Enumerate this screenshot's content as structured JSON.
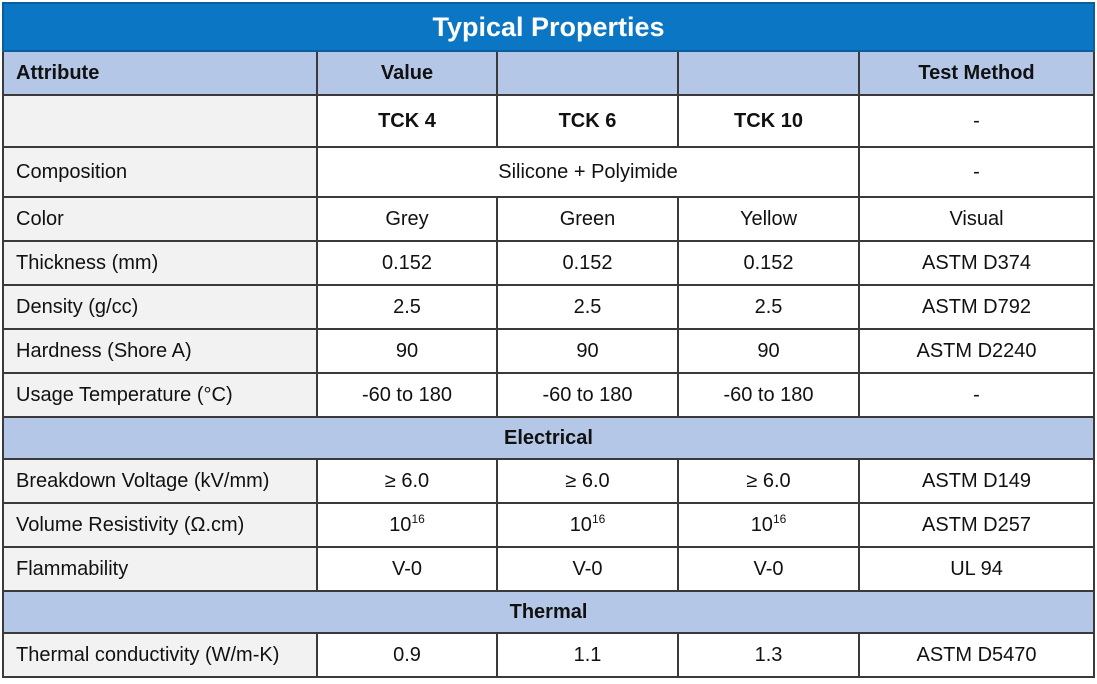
{
  "title": "Typical Properties",
  "header": {
    "attribute": "Attribute",
    "value": "Value",
    "test_method": "Test Method"
  },
  "grades": [
    "TCK 4",
    "TCK 6",
    "TCK 10"
  ],
  "grade_test": "-",
  "composition": {
    "label": "Composition",
    "value": "Silicone + Polyimide",
    "method": "-"
  },
  "general_rows": [
    {
      "label": "Color",
      "v1": "Grey",
      "v2": "Green",
      "v3": "Yellow",
      "method": "Visual"
    },
    {
      "label": "Thickness (mm)",
      "v1": "0.152",
      "v2": "0.152",
      "v3": "0.152",
      "method": "ASTM D374"
    },
    {
      "label": "Density (g/cc)",
      "v1": "2.5",
      "v2": "2.5",
      "v3": "2.5",
      "method": "ASTM D792"
    },
    {
      "label": "Hardness (Shore A)",
      "v1": "90",
      "v2": "90",
      "v3": "90",
      "method": "ASTM D2240"
    },
    {
      "label": "Usage Temperature (°C)",
      "v1": "-60 to 180",
      "v2": "-60 to 180",
      "v3": "-60 to 180",
      "method": "-"
    }
  ],
  "electrical": {
    "title": "Electrical",
    "breakdown": {
      "label": "Breakdown Voltage (kV/mm)",
      "v1": "≥ 6.0",
      "v2": "≥ 6.0",
      "v3": "≥ 6.0",
      "method": "ASTM D149"
    },
    "resistivity": {
      "label": "Volume Resistivity (Ω.cm)",
      "base": "10",
      "exp": "16",
      "method": "ASTM D257"
    },
    "flammability": {
      "label": "Flammability",
      "v1": "V-0",
      "v2": "V-0",
      "v3": "V-0",
      "method": "UL 94"
    }
  },
  "thermal": {
    "title": "Thermal",
    "conductivity": {
      "label": "Thermal conductivity (W/m-K)",
      "v1": "0.9",
      "v2": "1.1",
      "v3": "1.3",
      "method": "ASTM D5470"
    }
  }
}
